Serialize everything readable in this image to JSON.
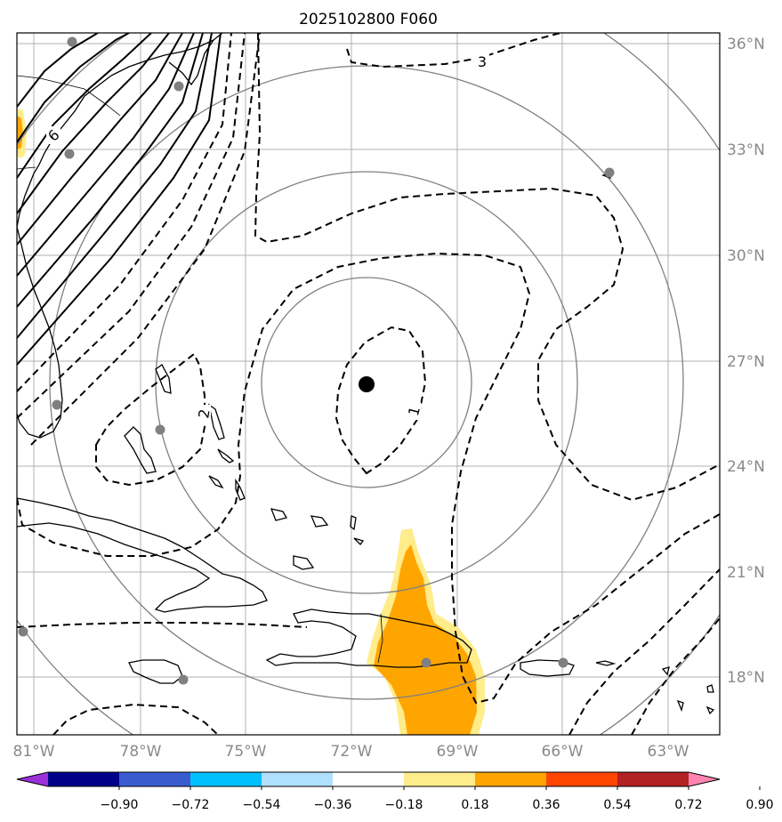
{
  "title": "2025102800 F060",
  "map": {
    "lon_ticks": [
      "81°W",
      "78°W",
      "75°W",
      "72°W",
      "69°W",
      "66°W",
      "63°W"
    ],
    "lat_ticks": [
      "36°N",
      "33°N",
      "30°N",
      "27°N",
      "24°N",
      "21°N",
      "18°N"
    ],
    "contour_labels": [
      "6",
      "3",
      "2",
      "1"
    ],
    "center_marker": "storm-center",
    "gridline_color": "#b0b0b0",
    "range_ring_color": "#808080",
    "station_color": "#808080"
  },
  "colorbar": {
    "levels": [
      "−0.90",
      "−0.72",
      "−0.54",
      "−0.36",
      "−0.18",
      "0.18",
      "0.36",
      "0.54",
      "0.72",
      "0.90"
    ],
    "colors": [
      "#9b30d9",
      "#00008b",
      "#3a5bd0",
      "#00bfff",
      "#b0e0ff",
      "#ffffff",
      "#ffec8b",
      "#ffa500",
      "#ff4500",
      "#b22222",
      "#ff85b0"
    ]
  }
}
